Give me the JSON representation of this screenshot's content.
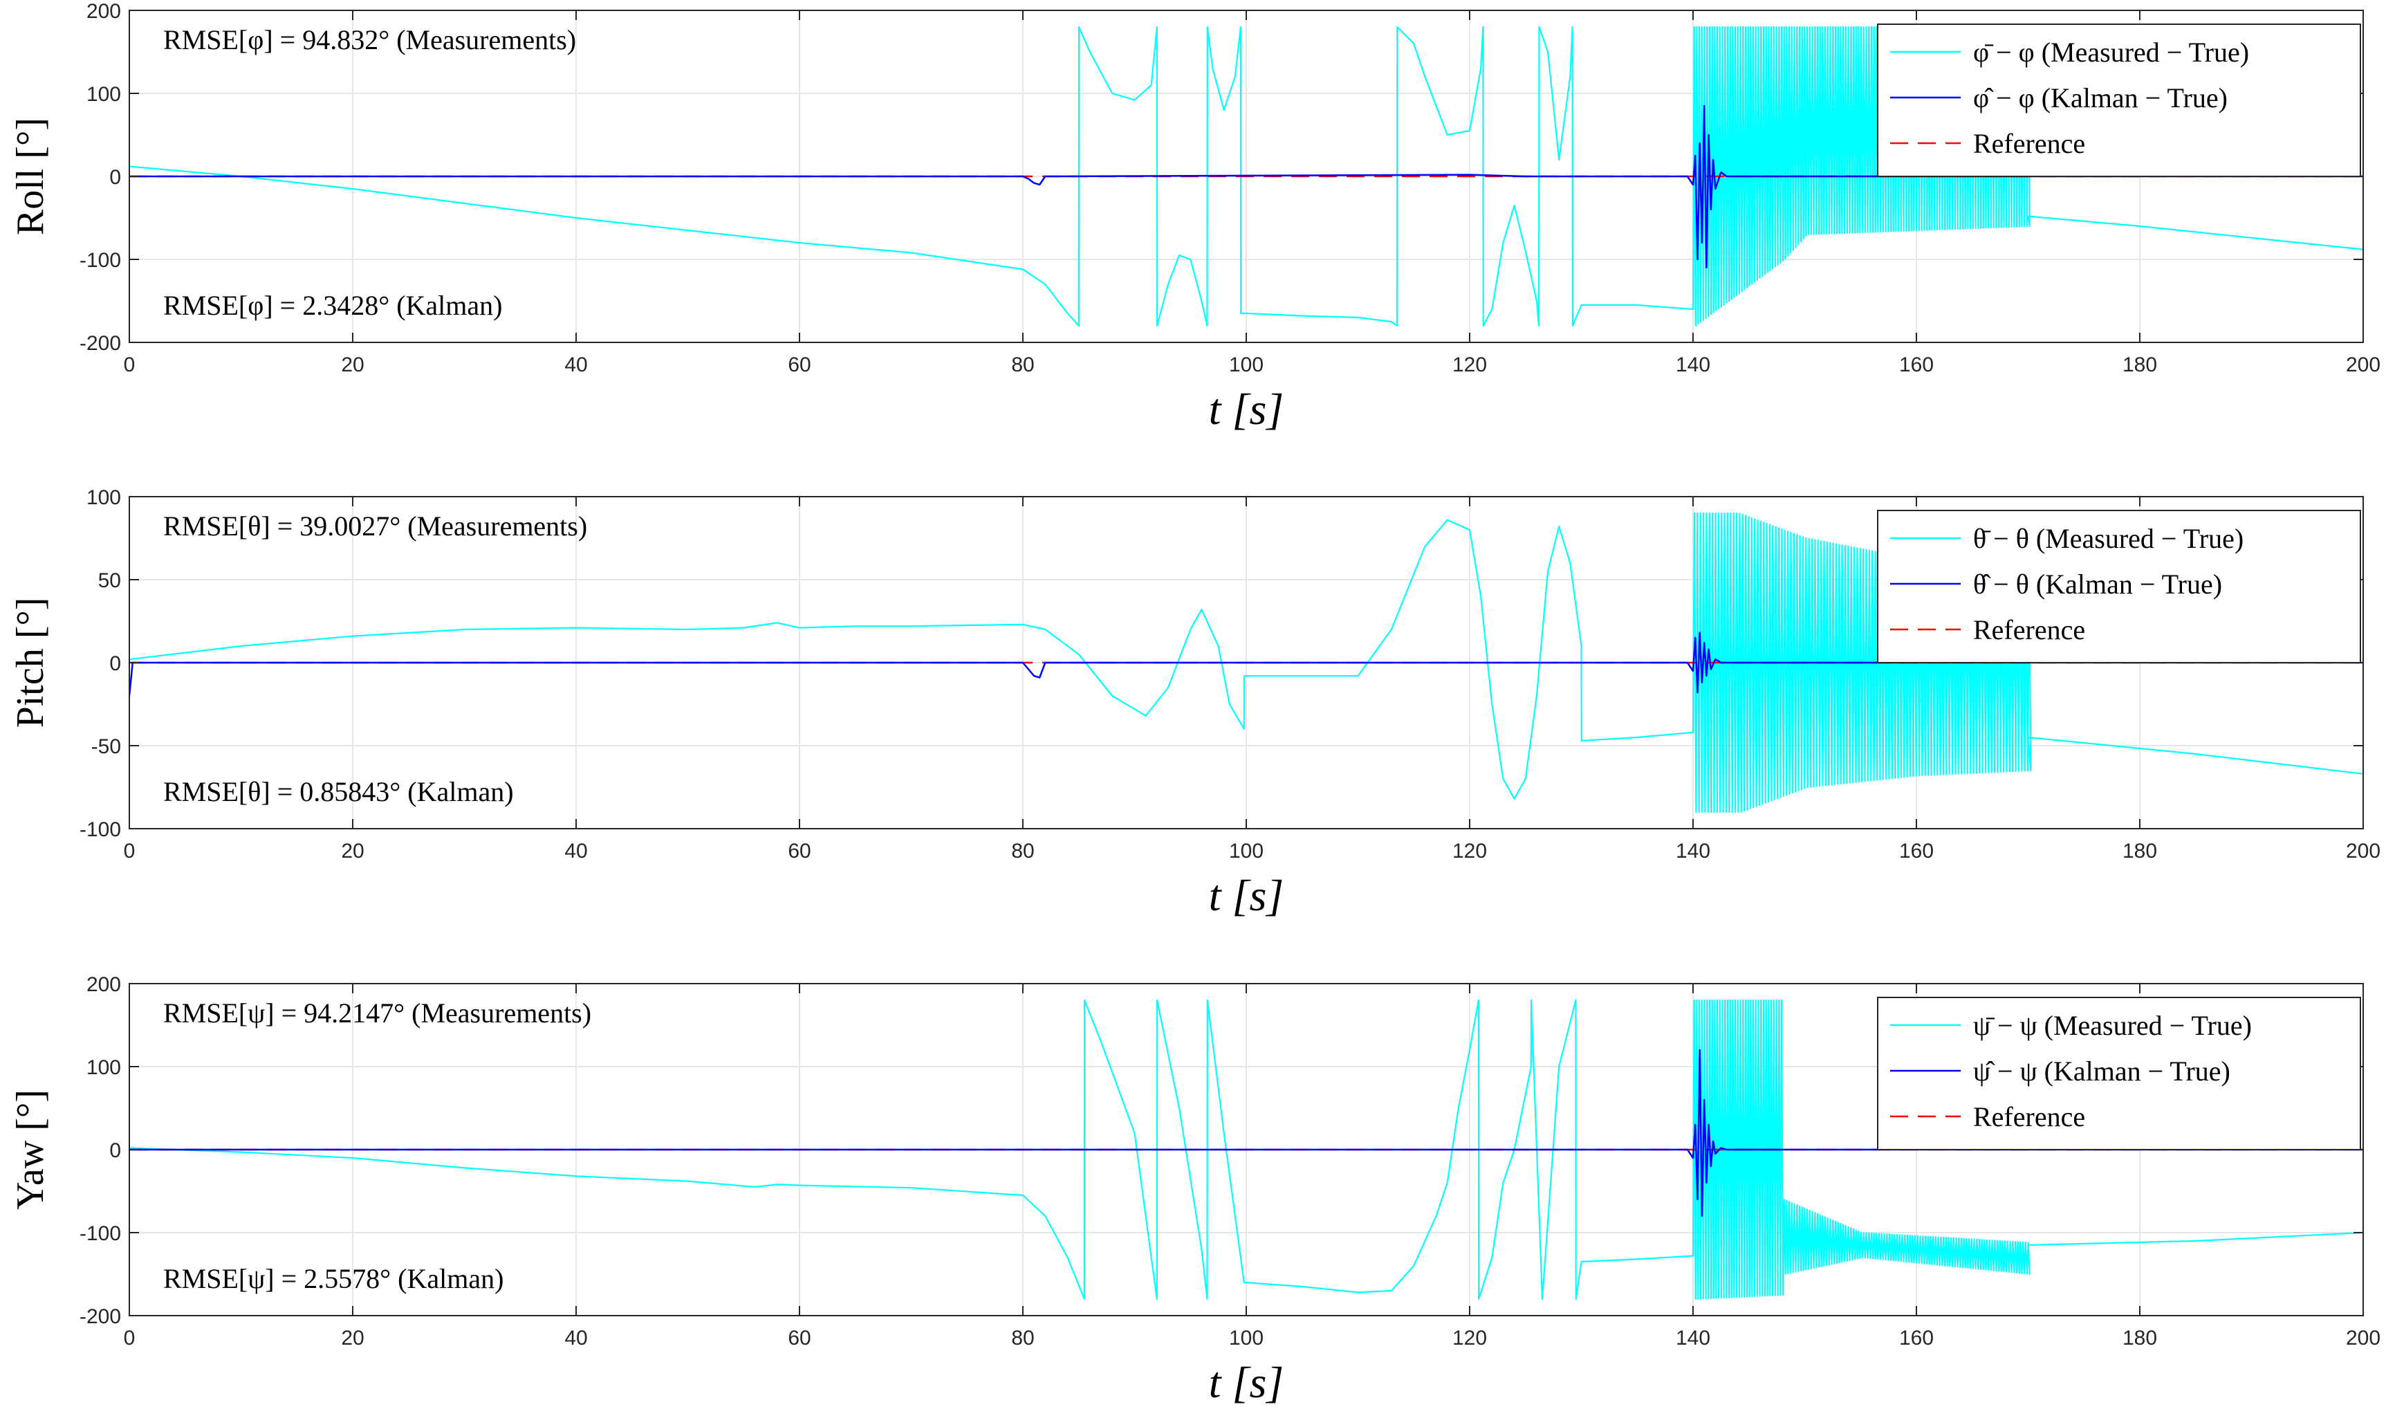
{
  "chart_data": [
    {
      "type": "line",
      "ylabel": "Roll [°]",
      "xlabel": "t [s]",
      "xlim": [
        0,
        200
      ],
      "ylim": [
        -200,
        200
      ],
      "xticks": [
        0,
        20,
        40,
        60,
        80,
        100,
        120,
        140,
        160,
        180,
        200
      ],
      "yticks": [
        -200,
        -100,
        0,
        100,
        200
      ],
      "grid": true,
      "legend_position": "top-right",
      "annotations": {
        "top": "RMSE[φ] = 94.832° (Measurements)",
        "bottom": "RMSE[φ] = 2.3428° (Kalman)"
      },
      "series": [
        {
          "name": "φ̄ − φ (Measured − True)",
          "color": "#00FFFF",
          "style": "solid",
          "x": [
            0,
            10,
            20,
            40,
            60,
            70,
            80,
            82,
            84,
            85,
            85.02,
            86,
            88,
            90,
            91.5,
            92,
            92.02,
            93,
            94,
            95,
            96,
            96.5,
            96.52,
            97,
            98,
            99,
            99.5,
            99.52,
            100,
            105,
            110,
            113,
            113.5,
            113.52,
            115,
            116,
            118,
            120,
            121,
            121.2,
            121.22,
            122,
            123,
            124,
            125,
            126,
            126.2,
            126.22,
            127,
            128,
            129,
            129.2,
            129.22,
            130,
            135,
            140
          ],
          "y": [
            12,
            0,
            -15,
            -50,
            -80,
            -92,
            -112,
            -130,
            -165,
            -180,
            180,
            150,
            100,
            92,
            110,
            180,
            -180,
            -130,
            -95,
            -100,
            -150,
            -180,
            180,
            130,
            80,
            120,
            180,
            -165,
            -165,
            -168,
            -170,
            -175,
            -180,
            180,
            160,
            120,
            50,
            55,
            130,
            180,
            -180,
            -160,
            -80,
            -35,
            -90,
            -150,
            -180,
            180,
            150,
            20,
            120,
            180,
            -180,
            -155,
            -155,
            -160
          ]
        },
        {
          "name": "φ̂ − φ (Kalman − True)",
          "color": "#0000FF",
          "style": "solid",
          "x": [
            0,
            80,
            80.5,
            81,
            81.5,
            82,
            120,
            125,
            139.5,
            140,
            140.2,
            140.4,
            140.6,
            140.8,
            141,
            141.2,
            141.4,
            141.6,
            141.8,
            142,
            142.5,
            143,
            150,
            200
          ],
          "y": [
            0,
            0,
            -3,
            -8,
            -10,
            0,
            2,
            0,
            0,
            -10,
            25,
            -100,
            40,
            -80,
            85,
            -110,
            50,
            -40,
            20,
            -15,
            5,
            0,
            0,
            0
          ]
        },
        {
          "name": "Reference",
          "color": "#FF0000",
          "style": "dashed",
          "x": [
            0,
            200
          ],
          "y": [
            0,
            0
          ]
        }
      ]
    },
    {
      "type": "line",
      "ylabel": "Pitch [°]",
      "xlabel": "t [s]",
      "xlim": [
        0,
        200
      ],
      "ylim": [
        -100,
        100
      ],
      "xticks": [
        0,
        20,
        40,
        60,
        80,
        100,
        120,
        140,
        160,
        180,
        200
      ],
      "yticks": [
        -100,
        -50,
        0,
        50,
        100
      ],
      "grid": true,
      "legend_position": "top-right",
      "annotations": {
        "top": "RMSE[θ] = 39.0027° (Measurements)",
        "bottom": "RMSE[θ] = 0.85843° (Kalman)"
      },
      "series": [
        {
          "name": "θ̄ − θ (Measured − True)",
          "color": "#00FFFF",
          "style": "solid",
          "x": [
            0,
            10,
            20,
            30,
            40,
            50,
            55,
            58,
            60,
            65,
            70,
            80,
            82,
            85,
            88,
            91,
            93,
            95,
            96,
            97.5,
            98.5,
            99.8,
            99.82,
            105,
            110,
            113,
            116,
            118,
            120,
            121,
            122,
            123,
            124,
            125,
            126,
            127,
            128,
            129,
            130,
            130.02,
            135,
            140
          ],
          "y": [
            2,
            10,
            16,
            20,
            21,
            20,
            21,
            24,
            21,
            22,
            22,
            23,
            20,
            5,
            -20,
            -32,
            -15,
            20,
            32,
            10,
            -25,
            -40,
            -8,
            -8,
            -8,
            20,
            70,
            86,
            80,
            40,
            -25,
            -70,
            -82,
            -70,
            -20,
            55,
            82,
            60,
            10,
            -47,
            -45,
            -42
          ]
        },
        {
          "name": "θ̂ − θ (Kalman − True)",
          "color": "#0000FF",
          "style": "solid",
          "x": [
            0,
            0.3,
            1,
            80,
            80.5,
            81,
            81.5,
            82,
            120,
            130,
            139.5,
            140,
            140.2,
            140.4,
            140.6,
            140.8,
            141,
            141.2,
            141.4,
            141.6,
            142,
            142.5,
            143,
            150,
            200
          ],
          "y": [
            -20,
            0,
            0,
            0,
            -4,
            -8,
            -9,
            0,
            0,
            0,
            0,
            -5,
            15,
            -18,
            18,
            -12,
            12,
            -8,
            8,
            -4,
            2,
            0,
            0,
            0,
            0
          ]
        },
        {
          "name": "Reference",
          "color": "#FF0000",
          "style": "dashed",
          "x": [
            0,
            200
          ],
          "y": [
            0,
            0
          ]
        }
      ]
    },
    {
      "type": "line",
      "ylabel": "Yaw [°]",
      "xlabel": "t [s]",
      "xlim": [
        0,
        200
      ],
      "ylim": [
        -200,
        200
      ],
      "xticks": [
        0,
        20,
        40,
        60,
        80,
        100,
        120,
        140,
        160,
        180,
        200
      ],
      "yticks": [
        -200,
        -100,
        0,
        100,
        200
      ],
      "grid": true,
      "legend_position": "top-right",
      "annotations": {
        "top": "RMSE[ψ] = 94.2147° (Measurements)",
        "bottom": "RMSE[ψ] = 2.5578° (Kalman)"
      },
      "series": [
        {
          "name": "ψ̄ − ψ (Measured − True)",
          "color": "#00FFFF",
          "style": "solid",
          "x": [
            0,
            10,
            20,
            30,
            40,
            50,
            56,
            58,
            60,
            70,
            80,
            82,
            84,
            85.5,
            85.52,
            87,
            90,
            92,
            92.02,
            94,
            96,
            96.5,
            96.52,
            98,
            99.8,
            99.82,
            105,
            110,
            113,
            115,
            117,
            118,
            119,
            120,
            120.8,
            120.82,
            122,
            123,
            124,
            125.5,
            125.52,
            126.5,
            128,
            129.5,
            129.52,
            130,
            135,
            140
          ],
          "y": [
            2,
            -3,
            -10,
            -22,
            -32,
            -38,
            -45,
            -42,
            -43,
            -46,
            -55,
            -80,
            -130,
            -180,
            180,
            130,
            20,
            -180,
            180,
            50,
            -120,
            -180,
            180,
            20,
            -160,
            -160,
            -165,
            -172,
            -170,
            -140,
            -80,
            -40,
            50,
            120,
            180,
            -180,
            -130,
            -40,
            0,
            100,
            180,
            -180,
            100,
            180,
            -180,
            -135,
            -132,
            -128
          ]
        },
        {
          "name": "ψ̂ − ψ (Kalman − True)",
          "color": "#0000FF",
          "style": "solid",
          "x": [
            0,
            100,
            139.5,
            140,
            140.2,
            140.4,
            140.6,
            140.8,
            141,
            141.2,
            141.4,
            141.6,
            141.8,
            142,
            142.5,
            143,
            150,
            200
          ],
          "y": [
            0,
            0,
            0,
            -10,
            30,
            -60,
            120,
            -80,
            60,
            -40,
            30,
            -20,
            10,
            -5,
            2,
            0,
            0,
            0
          ]
        },
        {
          "name": "Reference",
          "color": "#FF0000",
          "style": "dashed",
          "x": [
            0,
            200
          ],
          "y": [
            0,
            0
          ]
        }
      ]
    }
  ]
}
